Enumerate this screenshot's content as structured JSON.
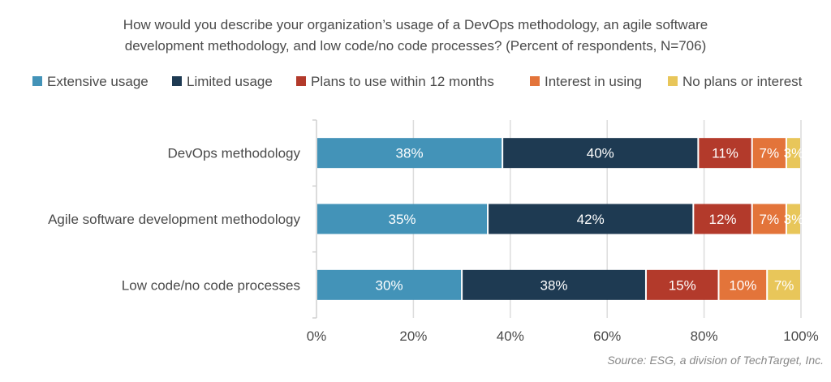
{
  "chart_data": {
    "type": "bar",
    "orientation": "horizontal",
    "stacked": true,
    "title_lines": [
      "How would you describe  your organization’s usage of a DevOps methodology, an agile software",
      "development methodology, and low code/no code processes? (Percent of respondents, N=706)"
    ],
    "categories": [
      "DevOps methodology",
      "Agile software development methodology",
      "Low code/no code processes"
    ],
    "series": [
      {
        "name": "Extensive usage",
        "color": "#4393b8",
        "values": [
          38,
          35,
          30
        ]
      },
      {
        "name": "Limited usage",
        "color": "#1e3a52",
        "values": [
          40,
          42,
          38
        ]
      },
      {
        "name": "Plans to use within 12 months",
        "color": "#b33a2b",
        "values": [
          11,
          12,
          15
        ]
      },
      {
        "name": "Interest in using",
        "color": "#e3743a",
        "values": [
          7,
          7,
          10
        ]
      },
      {
        "name": "No plans or interest",
        "color": "#e8c65a",
        "values": [
          3,
          3,
          7
        ]
      }
    ],
    "xlim": [
      0,
      100
    ],
    "xticks": [
      "0%",
      "20%",
      "40%",
      "60%",
      "80%",
      "100%"
    ],
    "grid": true,
    "legend_position": "top",
    "source": "Source: ESG, a division of TechTarget, Inc."
  }
}
